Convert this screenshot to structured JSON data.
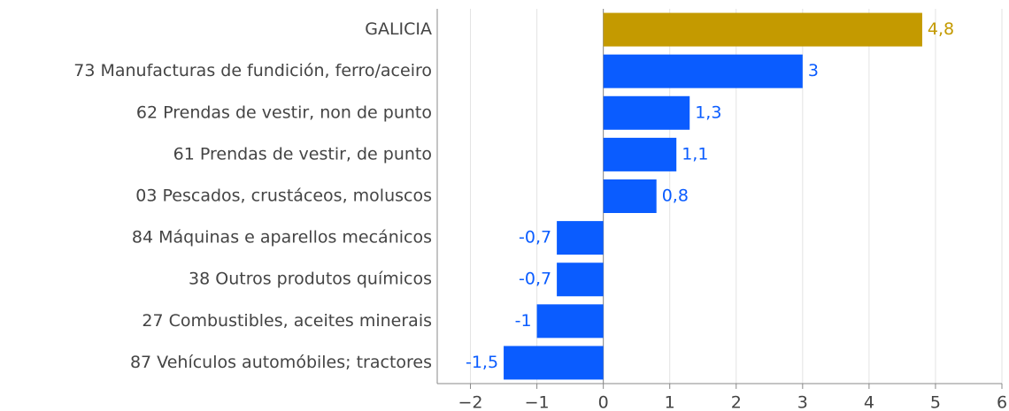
{
  "chart_data": {
    "type": "bar",
    "orientation": "horizontal",
    "categories": [
      "GALICIA",
      "73 Manufacturas de fundición, ferro/aceiro",
      "62 Prendas de vestir, non de punto",
      "61 Prendas de vestir, de punto",
      "03 Pescados, crustáceos, moluscos",
      "84 Máquinas e aparellos mecánicos",
      "38 Outros produtos químicos",
      "27 Combustibles, aceites minerais",
      "87 Vehículos automóbiles; tractores"
    ],
    "values": [
      4.8,
      3,
      1.3,
      1.1,
      0.8,
      -0.7,
      -0.7,
      -1,
      -1.5
    ],
    "value_labels": [
      "4,8",
      "3",
      "1,3",
      "1,1",
      "0,8",
      "-0,7",
      "-0,7",
      "-1",
      "-1,5"
    ],
    "colors": [
      "#c49a00",
      "#0a5cff",
      "#0a5cff",
      "#0a5cff",
      "#0a5cff",
      "#0a5cff",
      "#0a5cff",
      "#0a5cff",
      "#0a5cff"
    ],
    "xlim": [
      -2.5,
      6
    ],
    "xticks": [
      {
        "value": -2,
        "label": "−2"
      },
      {
        "value": -1,
        "label": "−1"
      },
      0,
      1,
      2,
      3,
      4,
      5,
      6
    ],
    "grid": true
  }
}
